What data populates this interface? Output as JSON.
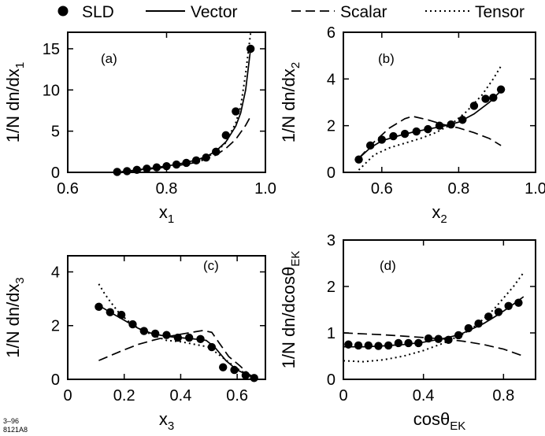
{
  "legend": [
    {
      "label": "SLD",
      "style": "marker"
    },
    {
      "label": "Vector",
      "style": "solid"
    },
    {
      "label": "Scalar",
      "style": "dashed"
    },
    {
      "label": "Tensor",
      "style": "dotted"
    }
  ],
  "footnote": {
    "line1": "3–96",
    "line2": "8121A8"
  },
  "colors": {
    "ink": "#000000",
    "background": "#ffffff"
  },
  "chart_data": [
    {
      "type": "line",
      "panel": "(a)",
      "xlabel": {
        "main": "x",
        "sub": "1"
      },
      "ylabel": {
        "main": "1/N dn/dx",
        "sub": "1"
      },
      "xlim": [
        0.6,
        1.0
      ],
      "ylim": [
        0,
        17
      ],
      "xticks": [
        0.6,
        0.8,
        1.0
      ],
      "xtick_labels": [
        "0.6",
        "0.8",
        "1.0"
      ],
      "yticks": [
        0,
        5,
        10,
        15
      ],
      "ytick_labels": [
        "0",
        "5",
        "10",
        "15"
      ],
      "series": [
        {
          "name": "SLD",
          "style": "marker",
          "x": [
            0.7,
            0.72,
            0.74,
            0.76,
            0.78,
            0.8,
            0.82,
            0.84,
            0.86,
            0.88,
            0.9,
            0.92,
            0.94,
            0.97
          ],
          "y": [
            0.05,
            0.15,
            0.3,
            0.45,
            0.6,
            0.75,
            0.95,
            1.15,
            1.45,
            1.8,
            2.5,
            4.5,
            7.4,
            15.0
          ]
        },
        {
          "name": "Vector",
          "style": "solid",
          "x": [
            0.7,
            0.74,
            0.78,
            0.82,
            0.86,
            0.88,
            0.9,
            0.92,
            0.94,
            0.95,
            0.96,
            0.97
          ],
          "y": [
            0.0,
            0.3,
            0.6,
            0.95,
            1.5,
            1.9,
            2.6,
            3.7,
            5.6,
            7.2,
            10.0,
            15.0
          ]
        },
        {
          "name": "Scalar",
          "style": "dashed",
          "x": [
            0.7,
            0.74,
            0.78,
            0.82,
            0.86,
            0.88,
            0.9,
            0.92,
            0.94,
            0.96,
            0.97
          ],
          "y": [
            0.0,
            0.25,
            0.5,
            0.8,
            1.2,
            1.6,
            2.1,
            2.9,
            4.0,
            5.7,
            6.8
          ]
        },
        {
          "name": "Tensor",
          "style": "dotted",
          "x": [
            0.7,
            0.74,
            0.78,
            0.82,
            0.86,
            0.88,
            0.9,
            0.92,
            0.94,
            0.95,
            0.96,
            0.97
          ],
          "y": [
            0.0,
            0.25,
            0.55,
            0.9,
            1.4,
            1.8,
            2.5,
            3.6,
            6.0,
            8.0,
            12.0,
            16.9
          ]
        }
      ]
    },
    {
      "type": "line",
      "panel": "(b)",
      "xlabel": {
        "main": "x",
        "sub": "2"
      },
      "ylabel": {
        "main": "1/N dn/dx",
        "sub": "2"
      },
      "xlim": [
        0.5,
        1.0
      ],
      "ylim": [
        0,
        6
      ],
      "xticks": [
        0.6,
        0.8,
        1.0
      ],
      "xtick_labels": [
        "0.6",
        "0.8",
        "1.0"
      ],
      "yticks": [
        0,
        2,
        4,
        6
      ],
      "ytick_labels": [
        "0",
        "2",
        "4",
        "6"
      ],
      "series": [
        {
          "name": "SLD",
          "style": "marker",
          "x": [
            0.54,
            0.57,
            0.6,
            0.63,
            0.66,
            0.69,
            0.72,
            0.75,
            0.78,
            0.81,
            0.84,
            0.87,
            0.89,
            0.91
          ],
          "y": [
            0.55,
            1.15,
            1.4,
            1.55,
            1.65,
            1.75,
            1.85,
            2.0,
            2.05,
            2.25,
            2.85,
            3.15,
            3.2,
            3.55
          ]
        },
        {
          "name": "Vector",
          "style": "solid",
          "x": [
            0.54,
            0.57,
            0.6,
            0.64,
            0.68,
            0.72,
            0.76,
            0.8,
            0.84,
            0.88,
            0.91
          ],
          "y": [
            0.6,
            1.05,
            1.35,
            1.55,
            1.72,
            1.85,
            1.98,
            2.15,
            2.5,
            3.0,
            3.5
          ]
        },
        {
          "name": "Scalar",
          "style": "dashed",
          "x": [
            0.54,
            0.58,
            0.62,
            0.66,
            0.68,
            0.72,
            0.76,
            0.8,
            0.84,
            0.88,
            0.91
          ],
          "y": [
            0.6,
            1.3,
            1.9,
            2.3,
            2.4,
            2.25,
            2.05,
            1.9,
            1.7,
            1.45,
            1.15
          ]
        },
        {
          "name": "Tensor",
          "style": "dotted",
          "x": [
            0.54,
            0.58,
            0.62,
            0.66,
            0.7,
            0.74,
            0.78,
            0.82,
            0.86,
            0.89,
            0.91
          ],
          "y": [
            0.1,
            0.75,
            1.05,
            1.25,
            1.45,
            1.7,
            2.05,
            2.6,
            3.3,
            4.0,
            4.55
          ]
        }
      ]
    },
    {
      "type": "line",
      "panel": "(c)",
      "xlabel": {
        "main": "x",
        "sub": "3"
      },
      "ylabel": {
        "main": "1/N dn/dx",
        "sub": "3"
      },
      "xlim": [
        0,
        0.7
      ],
      "ylim": [
        0,
        4.6
      ],
      "xticks": [
        0,
        0.2,
        0.4,
        0.6
      ],
      "xtick_labels": [
        "0",
        "0.2",
        "0.4",
        "0.6"
      ],
      "yticks": [
        0,
        2,
        4
      ],
      "ytick_labels": [
        "0",
        "2",
        "4"
      ],
      "series": [
        {
          "name": "SLD",
          "style": "marker",
          "x": [
            0.11,
            0.15,
            0.19,
            0.23,
            0.27,
            0.31,
            0.35,
            0.39,
            0.43,
            0.47,
            0.51,
            0.55,
            0.59,
            0.63,
            0.66
          ],
          "y": [
            2.7,
            2.5,
            2.4,
            2.05,
            1.8,
            1.7,
            1.65,
            1.55,
            1.55,
            1.5,
            1.2,
            0.45,
            0.35,
            0.15,
            0.05
          ]
        },
        {
          "name": "Vector",
          "style": "solid",
          "x": [
            0.11,
            0.15,
            0.2,
            0.25,
            0.3,
            0.35,
            0.4,
            0.45,
            0.49,
            0.52,
            0.56,
            0.6,
            0.64,
            0.67
          ],
          "y": [
            2.75,
            2.5,
            2.2,
            1.9,
            1.7,
            1.6,
            1.55,
            1.5,
            1.45,
            1.2,
            0.7,
            0.35,
            0.15,
            0.0
          ]
        },
        {
          "name": "Scalar",
          "style": "dashed",
          "x": [
            0.11,
            0.15,
            0.2,
            0.25,
            0.3,
            0.35,
            0.4,
            0.45,
            0.48,
            0.51,
            0.54,
            0.57,
            0.61,
            0.64,
            0.67
          ],
          "y": [
            0.7,
            0.88,
            1.1,
            1.3,
            1.45,
            1.58,
            1.68,
            1.77,
            1.82,
            1.75,
            1.3,
            0.85,
            0.5,
            0.2,
            0.0
          ]
        },
        {
          "name": "Tensor",
          "style": "dotted",
          "x": [
            0.11,
            0.13,
            0.15,
            0.18,
            0.21,
            0.25,
            0.3,
            0.35,
            0.4,
            0.45,
            0.5,
            0.55,
            0.6,
            0.64,
            0.67
          ],
          "y": [
            3.55,
            3.2,
            2.9,
            2.5,
            2.2,
            1.9,
            1.65,
            1.45,
            1.4,
            1.3,
            1.2,
            0.8,
            0.4,
            0.15,
            0.0
          ]
        }
      ]
    },
    {
      "type": "line",
      "panel": "(d)",
      "xlabel": {
        "main": "cosθ",
        "sub": "EK"
      },
      "ylabel": {
        "main": "1/N dn/dcosθ",
        "sub": "EK"
      },
      "xlim": [
        0,
        0.96
      ],
      "ylim": [
        0,
        3
      ],
      "xticks": [
        0,
        0.4,
        0.8
      ],
      "xtick_labels": [
        "0",
        "0.4",
        "0.8"
      ],
      "yticks": [
        0,
        1,
        2,
        3
      ],
      "ytick_labels": [
        "0",
        "1",
        "2",
        "3"
      ],
      "series": [
        {
          "name": "SLD",
          "style": "marker",
          "x": [
            0.025,
            0.075,
            0.125,
            0.175,
            0.225,
            0.275,
            0.325,
            0.375,
            0.425,
            0.475,
            0.525,
            0.575,
            0.625,
            0.675,
            0.725,
            0.775,
            0.825,
            0.875
          ],
          "y": [
            0.75,
            0.73,
            0.73,
            0.72,
            0.73,
            0.78,
            0.78,
            0.78,
            0.88,
            0.87,
            0.85,
            0.95,
            1.1,
            1.2,
            1.35,
            1.45,
            1.58,
            1.65
          ]
        },
        {
          "name": "Vector",
          "style": "solid",
          "x": [
            0.0,
            0.1,
            0.2,
            0.3,
            0.4,
            0.5,
            0.55,
            0.6,
            0.65,
            0.7,
            0.75,
            0.8,
            0.85,
            0.9
          ],
          "y": [
            0.7,
            0.7,
            0.72,
            0.75,
            0.8,
            0.88,
            0.93,
            1.0,
            1.1,
            1.2,
            1.33,
            1.47,
            1.62,
            1.78
          ]
        },
        {
          "name": "Scalar",
          "style": "dashed",
          "x": [
            0.0,
            0.1,
            0.2,
            0.3,
            0.4,
            0.5,
            0.6,
            0.7,
            0.8,
            0.9
          ],
          "y": [
            1.0,
            0.98,
            0.96,
            0.93,
            0.9,
            0.87,
            0.82,
            0.75,
            0.65,
            0.5
          ]
        },
        {
          "name": "Tensor",
          "style": "dotted",
          "x": [
            0.0,
            0.1,
            0.2,
            0.3,
            0.4,
            0.5,
            0.6,
            0.65,
            0.7,
            0.75,
            0.8,
            0.85,
            0.9
          ],
          "y": [
            0.4,
            0.38,
            0.42,
            0.5,
            0.62,
            0.78,
            0.98,
            1.12,
            1.3,
            1.5,
            1.75,
            2.0,
            2.3
          ]
        }
      ]
    }
  ]
}
